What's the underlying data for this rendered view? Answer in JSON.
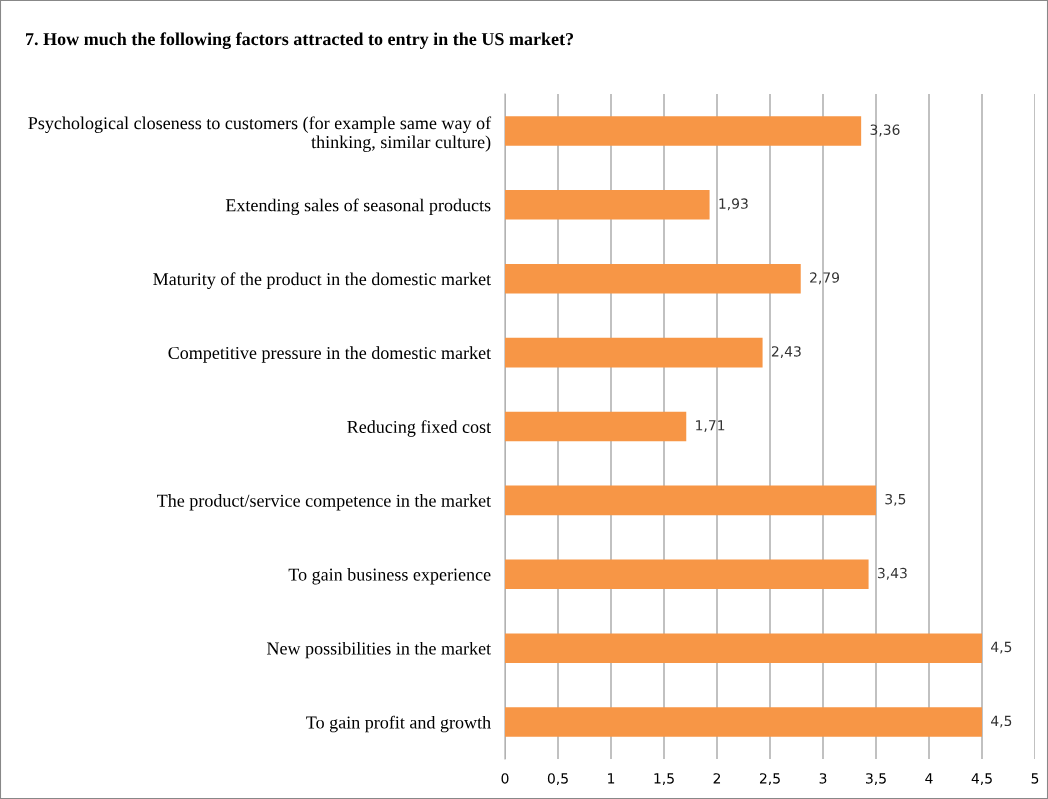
{
  "chart_data": {
    "type": "bar",
    "orientation": "horizontal",
    "title": "7. How much the following factors attracted to entry in the US market?",
    "categories": [
      "Psychological closeness to customers (for example same way of thinking, similar culture)",
      "Extending sales of seasonal products",
      "Maturity of the product in the domestic market",
      "Competitive pressure in the domestic market",
      "Reducing fixed cost",
      "The product/service competence in the market",
      "To gain business experience",
      "New possibilities in the market",
      "To gain profit and growth"
    ],
    "values": [
      3.36,
      1.93,
      2.79,
      2.43,
      1.71,
      3.5,
      3.43,
      4.5,
      4.5
    ],
    "value_labels": [
      "3,36",
      "1,93",
      "2,79",
      "2,43",
      "1,71",
      "3,5",
      "3,43",
      "4,5",
      "4,5"
    ],
    "color": "#f79646",
    "xlim": [
      0,
      5
    ],
    "xticks": [
      0,
      {
        "value": 0.5,
        "label": "0,5"
      },
      1,
      {
        "value": 1.5,
        "label": "1,5"
      },
      2,
      {
        "value": 2.5,
        "label": "2,5"
      },
      3,
      {
        "value": 3.5,
        "label": "3,5"
      },
      4,
      {
        "value": 4.5,
        "label": "4,5"
      },
      5
    ],
    "grid": "x"
  }
}
